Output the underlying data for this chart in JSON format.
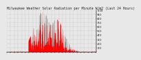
{
  "title": "Milwaukee Weather Solar Radiation per Minute W/m2 (Last 24 Hours)",
  "title_fontsize": 3.5,
  "background_color": "#e8e8e8",
  "plot_bg_color": "#e8e8e8",
  "bar_color": "#ff0000",
  "grid_color": "#bbbbbb",
  "grid_linestyle": "--",
  "ylim": [
    0,
    1000
  ],
  "ytick_count": 11,
  "ylabel_fontsize": 2.5,
  "xlabel_fontsize": 2.5,
  "num_points": 1440,
  "peak_value": 950,
  "num_vgrid": 24,
  "num_xticks": 25
}
